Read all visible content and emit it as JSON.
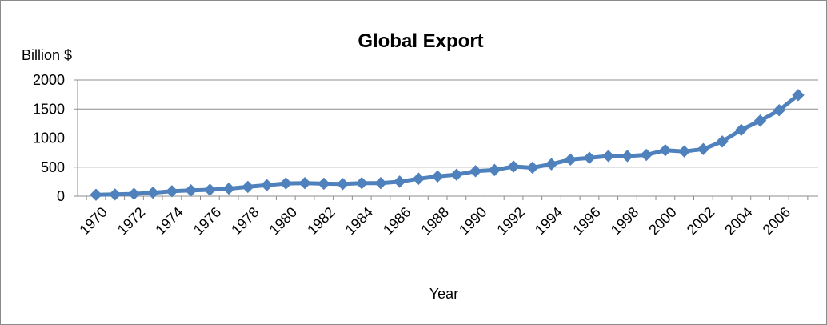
{
  "chart_data": {
    "type": "line",
    "title": "Global Export",
    "xlabel": "Year",
    "ylabel": "Billion $",
    "ylim": [
      0,
      2000
    ],
    "yticks": [
      0,
      500,
      1000,
      1500,
      2000
    ],
    "xlim": [
      1970,
      2007
    ],
    "xtick_labels": [
      "1970",
      "1972",
      "1974",
      "1976",
      "1978",
      "1980",
      "1982",
      "1984",
      "1986",
      "1988",
      "1990",
      "1992",
      "1994",
      "1996",
      "1998",
      "2000",
      "2002",
      "2004",
      "2006"
    ],
    "grid": true,
    "legend": "none",
    "marker": "diamond",
    "series_color": "#4F81BD",
    "x": [
      1970,
      1971,
      1972,
      1973,
      1974,
      1975,
      1976,
      1977,
      1978,
      1979,
      1980,
      1981,
      1982,
      1983,
      1984,
      1985,
      1986,
      1987,
      1988,
      1989,
      1990,
      1991,
      1992,
      1993,
      1994,
      1995,
      1996,
      1997,
      1998,
      1999,
      2000,
      2001,
      2002,
      2003,
      2004,
      2005,
      2006,
      2007
    ],
    "series": [
      {
        "values": [
          25,
          30,
          40,
          60,
          85,
          100,
          110,
          130,
          160,
          190,
          220,
          225,
          215,
          210,
          225,
          225,
          250,
          300,
          340,
          370,
          430,
          450,
          510,
          490,
          550,
          630,
          660,
          690,
          690,
          710,
          790,
          770,
          810,
          940,
          1140,
          1300,
          1480,
          1740
        ]
      }
    ]
  }
}
